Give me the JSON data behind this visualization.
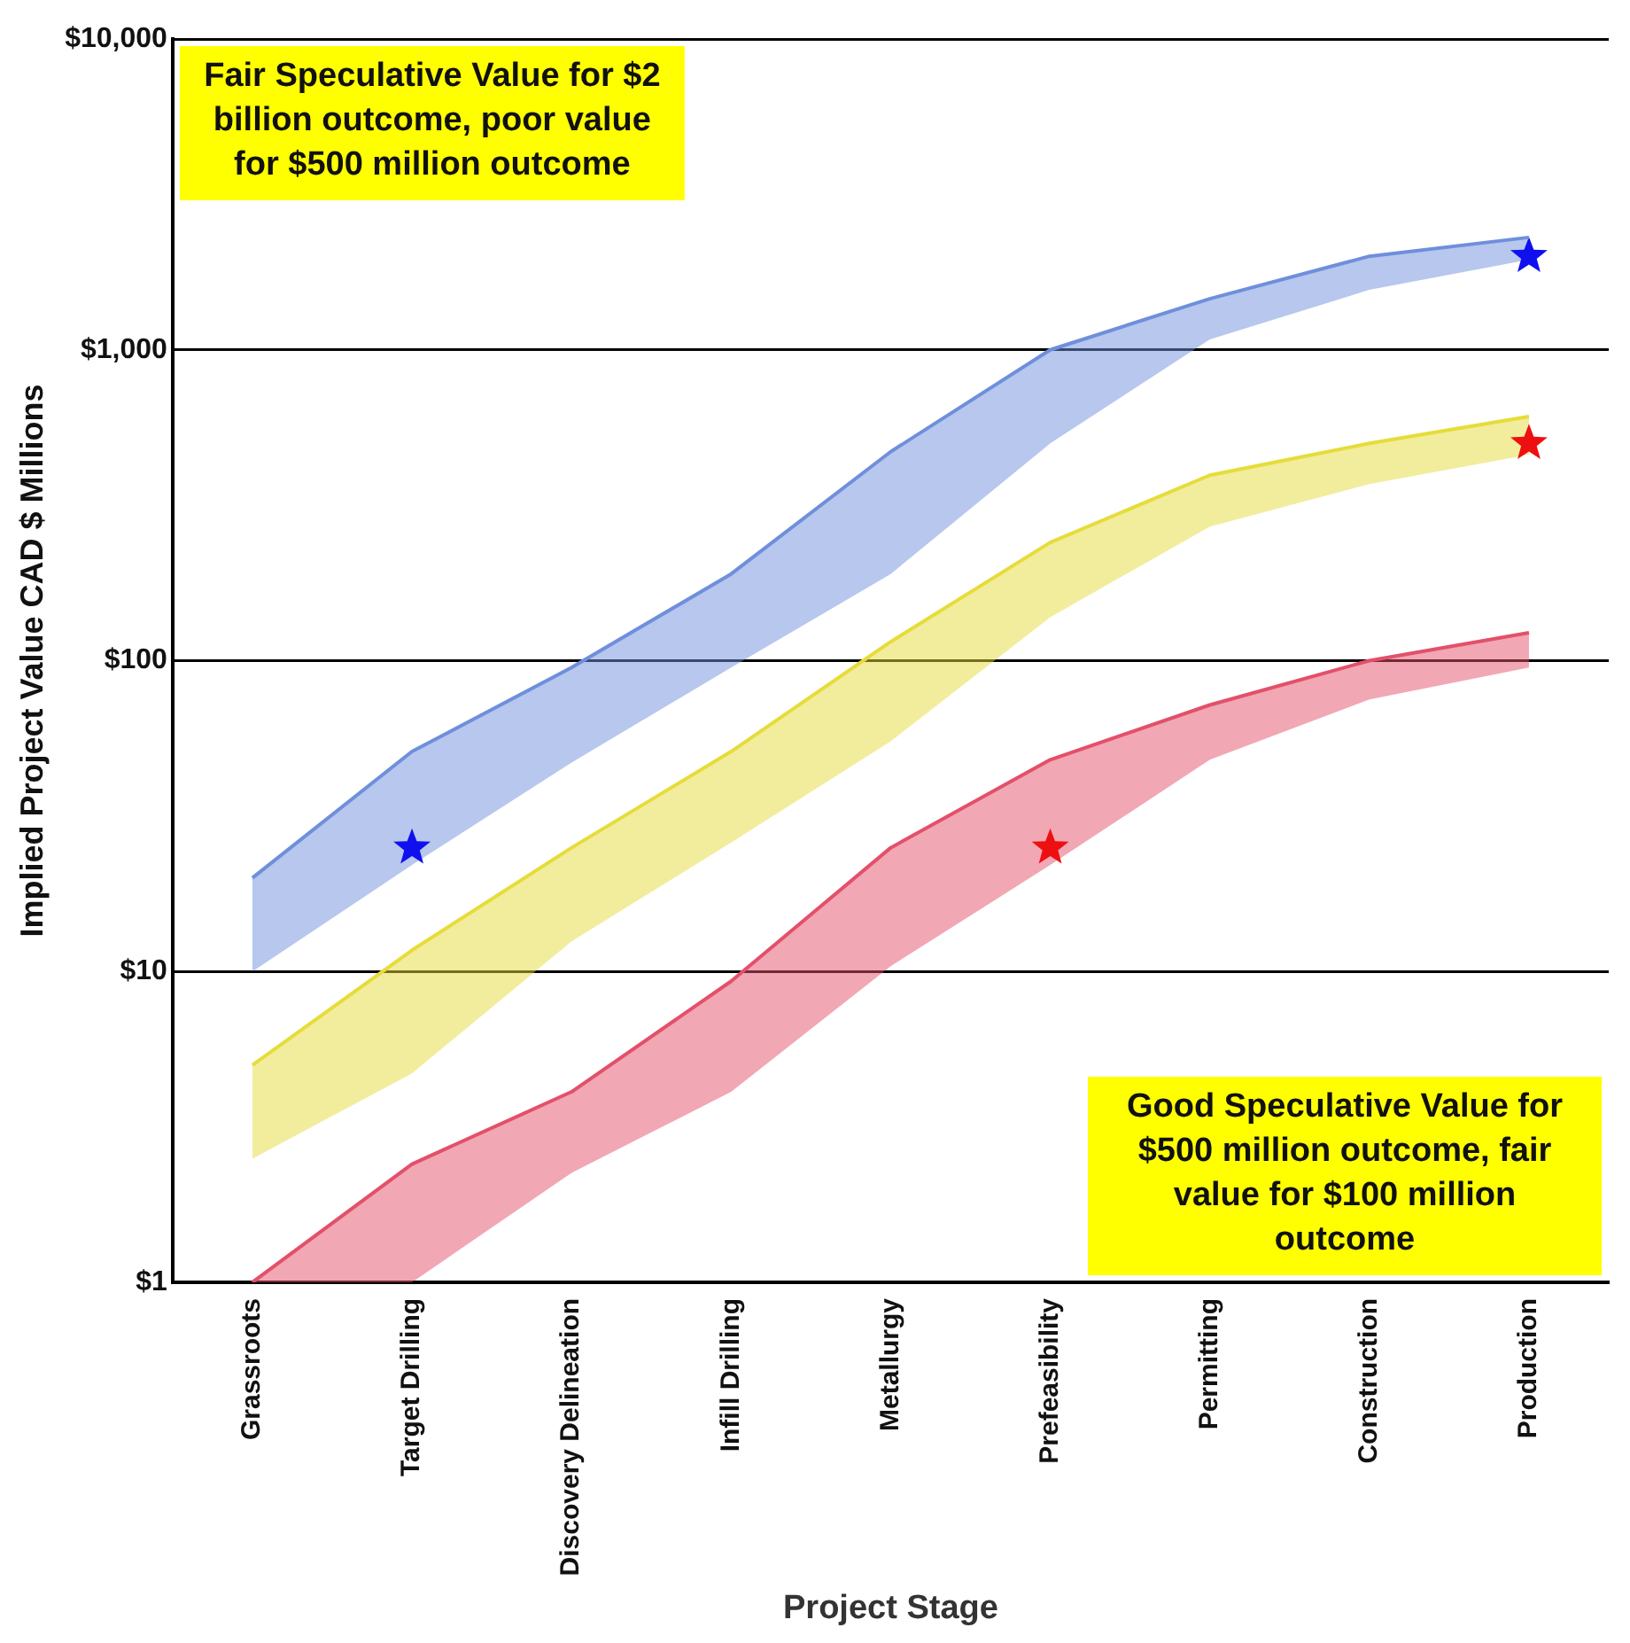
{
  "chart_data": {
    "type": "line",
    "xlabel": "Project Stage",
    "ylabel": "Implied Project Value CAD $ Millions",
    "categories": [
      "Grassroots",
      "Target Drilling",
      "Discovery Delineation",
      "Infill Drilling",
      "Metallurgy",
      "Prefeasibility",
      "Permitting",
      "Construction",
      "Production"
    ],
    "series": [
      {
        "color": "#6f8fdc",
        "values": [
          20,
          51,
          95,
          190,
          470,
          1000,
          1460,
          2000,
          2300
        ],
        "lower": [
          10,
          22,
          47,
          95,
          190,
          500,
          1080,
          1560,
          1950
        ],
        "upper": [
          20,
          51,
          95,
          190,
          470,
          1000,
          1460,
          2000,
          2300
        ]
      },
      {
        "color": "#e6dc3a",
        "values": [
          5,
          11.7,
          25,
          51,
          115,
          240,
          395,
          500,
          610
        ],
        "lower": [
          2.5,
          4.7,
          12.5,
          26,
          55,
          138,
          270,
          370,
          460
        ],
        "upper": [
          5,
          11.7,
          25,
          51,
          115,
          240,
          395,
          500,
          610
        ]
      },
      {
        "color": "#e3506a",
        "values": [
          1,
          2.4,
          4.1,
          9.3,
          25,
          48,
          72,
          100,
          123
        ],
        "lower": [
          1,
          1,
          2.25,
          4.1,
          10.4,
          22,
          48,
          75,
          95
        ],
        "upper": [
          1,
          2.4,
          4.1,
          9.3,
          25,
          48,
          72,
          100,
          123
        ]
      },
      {
        "type": "scatter",
        "marker": "star",
        "x": [
          "Target Drilling",
          "Production"
        ],
        "values": [
          25,
          2000
        ],
        "color": "#1010ee"
      },
      {
        "type": "scatter",
        "marker": "star",
        "x": [
          "Prefeasibility",
          "Production"
        ],
        "values": [
          25,
          500
        ],
        "color": "#ee1010"
      }
    ],
    "log": "y",
    "ylim": [
      1,
      10000
    ],
    "yticks": [
      {
        "value": 1,
        "label": "$1"
      },
      {
        "value": 10,
        "label": "$10"
      },
      {
        "value": 100,
        "label": "$100"
      },
      {
        "value": 1000,
        "label": "$1,000"
      },
      {
        "value": 10000,
        "label": "$10,000"
      }
    ],
    "grid": "y",
    "legend": false,
    "annotations": [
      "Fair Speculative Value for $2 billion outcome, poor value for $500 million outcome",
      "Good Speculative Value for $500 million outcome, fair value for $100 million outcome"
    ]
  }
}
